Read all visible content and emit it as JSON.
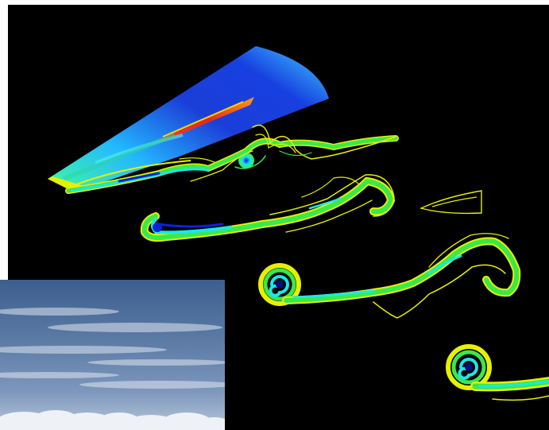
{
  "scene": {
    "kind": "CFD visualization of wing-tip vortex wake over aircraft wing",
    "background": "#000000",
    "colors": {
      "contour_yellow": "#e6f000",
      "contour_green": "#39e94a",
      "cyan": "#19e8e8",
      "blue": "#0a22d8",
      "dark_blue": "#06107a",
      "red": "#e0281e",
      "wing_top": "#1a3bd6",
      "wing_light": "#2fb4ff"
    },
    "slices": [
      {
        "name": "wake-slice-1"
      },
      {
        "name": "wake-slice-2"
      },
      {
        "name": "wake-slice-3"
      },
      {
        "name": "wake-slice-4"
      }
    ]
  },
  "photo": {
    "kind": "sky photograph with clouds",
    "sky_top": "#3d5f8f",
    "sky_mid": "#6f8db3",
    "cloud": "#e9eef5"
  }
}
